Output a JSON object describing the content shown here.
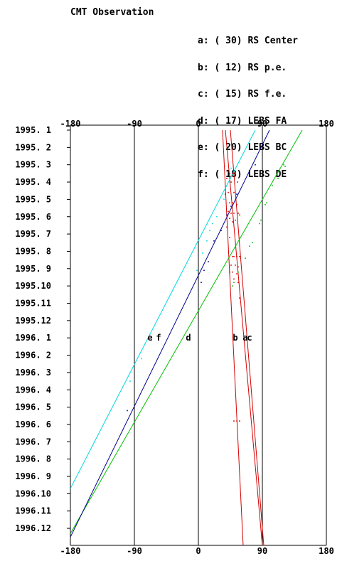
{
  "title": "CMT Observation",
  "legend": [
    {
      "key": "a:",
      "count": "( 30)",
      "name": "RS Center"
    },
    {
      "key": "b:",
      "count": "( 12)",
      "name": "RS p.e."
    },
    {
      "key": "c:",
      "count": "( 15)",
      "name": "RS f.e."
    },
    {
      "key": "d:",
      "count": "( 17)",
      "name": "LEBS FA"
    },
    {
      "key": "e:",
      "count": "( 20)",
      "name": "LEBS BC"
    },
    {
      "key": "f:",
      "count": "( 18)",
      "name": "LEBS DE"
    }
  ],
  "chart_data": {
    "type": "line",
    "xlim": [
      -180,
      180
    ],
    "x_ticks": [
      -180,
      -90,
      0,
      90,
      180
    ],
    "x_tick_labels": [
      "-180",
      "-90",
      "0",
      "90",
      "180"
    ],
    "y_labels": [
      "1995. 1",
      "1995. 2",
      "1995. 3",
      "1995. 4",
      "1995. 5",
      "1995. 6",
      "1995. 7",
      "1995. 8",
      "1995. 9",
      "1995.10",
      "1995.11",
      "1995.12",
      "1996. 1",
      "1996. 2",
      "1996. 3",
      "1996. 4",
      "1996. 5",
      "1996. 6",
      "1996. 7",
      "1996. 8",
      "1996. 9",
      "1996.10",
      "1996.11",
      "1996.12"
    ],
    "ylim_months": [
      0,
      24
    ],
    "series": [
      {
        "name": "a",
        "color": "#d40000",
        "start": [
          34,
          0
        ],
        "end": [
          63,
          24
        ]
      },
      {
        "name": "b",
        "color": "#d40000",
        "start": [
          38,
          0
        ],
        "end": [
          90,
          24
        ]
      },
      {
        "name": "c",
        "color": "#d40000",
        "start": [
          45,
          0
        ],
        "end": [
          92,
          24
        ]
      },
      {
        "name": "d",
        "color": "#00c000",
        "start": [
          146,
          0
        ],
        "end": [
          -180,
          23.3
        ]
      },
      {
        "name": "e",
        "color": "#00d8e0",
        "start": [
          80,
          0
        ],
        "end": [
          -180,
          20.7
        ]
      },
      {
        "name": "f",
        "color": "#00008c",
        "start": [
          100,
          0
        ],
        "end": [
          -180,
          23.5
        ]
      }
    ],
    "label_month": 12,
    "labels": [
      {
        "text": "e",
        "x": -68
      },
      {
        "text": "f",
        "x": -56
      },
      {
        "text": "d",
        "x": -14
      },
      {
        "text": "b",
        "x": 52
      },
      {
        "text": "a",
        "x": 66
      },
      {
        "text": "c",
        "x": 72
      }
    ],
    "points": {
      "red": [
        [
          44,
          2.5
        ],
        [
          48,
          2.5
        ],
        [
          52,
          2.5
        ],
        [
          40,
          2.8
        ],
        [
          46,
          3
        ],
        [
          55,
          3
        ],
        [
          42,
          3.6
        ],
        [
          50,
          3.6
        ],
        [
          38,
          3.7
        ],
        [
          44,
          4.2
        ],
        [
          48,
          4.2
        ],
        [
          54,
          4.3
        ],
        [
          42,
          4.7
        ],
        [
          46,
          4.8
        ],
        [
          50,
          4.8
        ],
        [
          56,
          4.8
        ],
        [
          58,
          4.9
        ],
        [
          44,
          5.1
        ],
        [
          52,
          5.2
        ],
        [
          48,
          5.3
        ],
        [
          40,
          5.6
        ],
        [
          44,
          6.2
        ],
        [
          48,
          7.3
        ],
        [
          50,
          7.3
        ],
        [
          54,
          7.3
        ],
        [
          58,
          7.3
        ],
        [
          46,
          7.8
        ],
        [
          52,
          7.8
        ],
        [
          56,
          7.9
        ],
        [
          44,
          8.2
        ],
        [
          48,
          8.2
        ],
        [
          54,
          8.3
        ],
        [
          50,
          8.6
        ],
        [
          56,
          8.8
        ],
        [
          58,
          9.7
        ],
        [
          50,
          16.8
        ],
        [
          54,
          16.8
        ],
        [
          58,
          16.8
        ]
      ],
      "green": [
        [
          120,
          2
        ],
        [
          122,
          2.1
        ],
        [
          112,
          2.8
        ],
        [
          104,
          3.2
        ],
        [
          96,
          4.2
        ],
        [
          94,
          4.3
        ],
        [
          88,
          5.2
        ],
        [
          86,
          5.4
        ],
        [
          76,
          6.5
        ],
        [
          72,
          6.7
        ],
        [
          66,
          7.4
        ],
        [
          56,
          8.2
        ],
        [
          50,
          8.8
        ],
        [
          48,
          9
        ]
      ],
      "cyan": [
        [
          46,
          2.2
        ],
        [
          44,
          3
        ],
        [
          36,
          4
        ],
        [
          26,
          5
        ],
        [
          20,
          5.4
        ],
        [
          16,
          5.8
        ],
        [
          12,
          6.4
        ],
        [
          6,
          7.1
        ],
        [
          -2,
          8.1
        ],
        [
          -80,
          13.2
        ],
        [
          -96,
          14.5
        ]
      ],
      "blue": [
        [
          80,
          2
        ],
        [
          54,
          3.7
        ],
        [
          46,
          4.4
        ],
        [
          40,
          4.9
        ],
        [
          32,
          5.8
        ],
        [
          22,
          6.4
        ],
        [
          14,
          7.6
        ],
        [
          8,
          8.1
        ],
        [
          4,
          8.8
        ],
        [
          -100,
          16.2
        ]
      ]
    }
  }
}
